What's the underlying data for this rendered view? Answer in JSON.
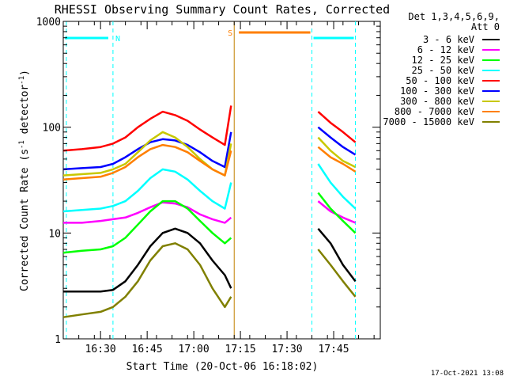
{
  "chart_data": {
    "type": "line",
    "title": "RHESSI Observing Summary Count Rates, Corrected",
    "xlabel": "Start Time (20-Oct-06 16:18:02)",
    "ylabel_main": "Corrected Count Rate (s",
    "ylabel_sup1": "-1",
    "ylabel_mid": " detector",
    "ylabel_sup2": "-1",
    "ylabel_end": ")",
    "yscale": "log",
    "ylim": [
      1,
      1000
    ],
    "xlim_minutes": [
      "16:18",
      "18:00"
    ],
    "x_ticks": [
      "16:30",
      "16:45",
      "17:00",
      "17:15",
      "17:30",
      "17:45"
    ],
    "y_ticks": [
      "1",
      "10",
      "100",
      "1000"
    ],
    "legend_header": [
      "Det 1,3,4,5,6,9,",
      "Att 0"
    ],
    "legend_position": "right",
    "timestamp": "17-Oct-2021 13:08",
    "flags": [
      {
        "label": "N",
        "color": "#00ffff",
        "segments": [
          [
            "16:18",
            "16:33"
          ],
          [
            "17:38",
            "17:52"
          ]
        ]
      },
      {
        "label": "S",
        "color": "#ff7f00",
        "segments": [
          [
            "17:14",
            "17:38"
          ]
        ]
      }
    ],
    "vlines": [
      {
        "t": "16:19",
        "color": "#00ffff"
      },
      {
        "t": "16:34",
        "color": "#00ffff"
      },
      {
        "t": "17:13",
        "color": "#c08000"
      },
      {
        "t": "17:38",
        "color": "#00ffff"
      },
      {
        "t": "17:52",
        "color": "#00ffff"
      }
    ],
    "series": [
      {
        "name": "3 - 6 keV",
        "color": "#000000",
        "x": [
          "16:18",
          "16:24",
          "16:30",
          "16:34",
          "16:38",
          "16:42",
          "16:46",
          "16:50",
          "16:54",
          "16:58",
          "17:02",
          "17:06",
          "17:10",
          "17:12",
          "17:40",
          "17:44",
          "17:48",
          "17:52"
        ],
        "values": [
          2.8,
          2.8,
          2.8,
          2.9,
          3.5,
          5,
          7.5,
          10,
          11,
          10,
          8,
          5.5,
          4,
          3,
          11,
          8,
          5,
          3.5
        ]
      },
      {
        "name": "6 - 12 keV",
        "color": "#ff00ff",
        "x": [
          "16:18",
          "16:24",
          "16:30",
          "16:34",
          "16:38",
          "16:42",
          "16:46",
          "16:50",
          "16:54",
          "16:58",
          "17:02",
          "17:06",
          "17:10",
          "17:12",
          "17:40",
          "17:44",
          "17:48",
          "17:52"
        ],
        "values": [
          12.5,
          12.5,
          13,
          13.5,
          14,
          15.5,
          17.5,
          19.5,
          19,
          17.5,
          15,
          13.5,
          12.5,
          14,
          20,
          16,
          14,
          12.5
        ]
      },
      {
        "name": "12 - 25 keV",
        "color": "#00ff00",
        "x": [
          "16:18",
          "16:24",
          "16:30",
          "16:34",
          "16:38",
          "16:42",
          "16:46",
          "16:50",
          "16:54",
          "16:58",
          "17:02",
          "17:06",
          "17:10",
          "17:12",
          "17:40",
          "17:44",
          "17:48",
          "17:52"
        ],
        "values": [
          6.5,
          6.8,
          7,
          7.5,
          9,
          12,
          16,
          20,
          20,
          17,
          13,
          10,
          8,
          9,
          24,
          17,
          13,
          10
        ]
      },
      {
        "name": "25 - 50 keV",
        "color": "#00ffff",
        "x": [
          "16:18",
          "16:24",
          "16:30",
          "16:34",
          "16:38",
          "16:42",
          "16:46",
          "16:50",
          "16:54",
          "16:58",
          "17:02",
          "17:06",
          "17:10",
          "17:12",
          "17:40",
          "17:44",
          "17:48",
          "17:52"
        ],
        "values": [
          16,
          16.5,
          17,
          18,
          20,
          25,
          33,
          40,
          38,
          32,
          25,
          20,
          17,
          30,
          45,
          30,
          22,
          17
        ]
      },
      {
        "name": "50 - 100 keV",
        "color": "#ff0000",
        "x": [
          "16:18",
          "16:24",
          "16:30",
          "16:34",
          "16:38",
          "16:42",
          "16:46",
          "16:50",
          "16:54",
          "16:58",
          "17:02",
          "17:06",
          "17:10",
          "17:12",
          "17:40",
          "17:44",
          "17:48",
          "17:52"
        ],
        "values": [
          60,
          62,
          65,
          70,
          80,
          100,
          120,
          140,
          130,
          115,
          95,
          80,
          68,
          160,
          140,
          110,
          90,
          72
        ]
      },
      {
        "name": "100 - 300 keV",
        "color": "#0000ff",
        "x": [
          "16:18",
          "16:24",
          "16:30",
          "16:34",
          "16:38",
          "16:42",
          "16:46",
          "16:50",
          "16:54",
          "16:58",
          "17:02",
          "17:06",
          "17:10",
          "17:12",
          "17:40",
          "17:44",
          "17:48",
          "17:52"
        ],
        "values": [
          40,
          41,
          42,
          45,
          52,
          62,
          72,
          77,
          75,
          68,
          58,
          48,
          42,
          90,
          100,
          80,
          65,
          55
        ]
      },
      {
        "name": "300 - 800 keV",
        "color": "#c8c800",
        "x": [
          "16:18",
          "16:24",
          "16:30",
          "16:34",
          "16:38",
          "16:42",
          "16:46",
          "16:50",
          "16:54",
          "16:58",
          "17:02",
          "17:06",
          "17:10",
          "17:12",
          "17:40",
          "17:44",
          "17:48",
          "17:52"
        ],
        "values": [
          35,
          36,
          37,
          40,
          45,
          58,
          75,
          90,
          80,
          65,
          50,
          40,
          35,
          70,
          80,
          60,
          48,
          42
        ]
      },
      {
        "name": "800 - 7000 keV",
        "color": "#ff7f00",
        "x": [
          "16:18",
          "16:24",
          "16:30",
          "16:34",
          "16:38",
          "16:42",
          "16:46",
          "16:50",
          "16:54",
          "16:58",
          "17:02",
          "17:06",
          "17:10",
          "17:12",
          "17:40",
          "17:44",
          "17:48",
          "17:52"
        ],
        "values": [
          32,
          33,
          34,
          37,
          42,
          52,
          62,
          68,
          65,
          58,
          48,
          40,
          35,
          60,
          65,
          52,
          45,
          38
        ]
      },
      {
        "name": "7000 - 15000 keV",
        "color": "#808000",
        "x": [
          "16:18",
          "16:24",
          "16:30",
          "16:34",
          "16:38",
          "16:42",
          "16:46",
          "16:50",
          "16:54",
          "16:58",
          "17:02",
          "17:06",
          "17:10",
          "17:12",
          "17:40",
          "17:44",
          "17:48",
          "17:52"
        ],
        "values": [
          1.6,
          1.7,
          1.8,
          2,
          2.5,
          3.5,
          5.5,
          7.5,
          8,
          7,
          5,
          3,
          2,
          2.5,
          7,
          5,
          3.5,
          2.5
        ]
      }
    ]
  }
}
